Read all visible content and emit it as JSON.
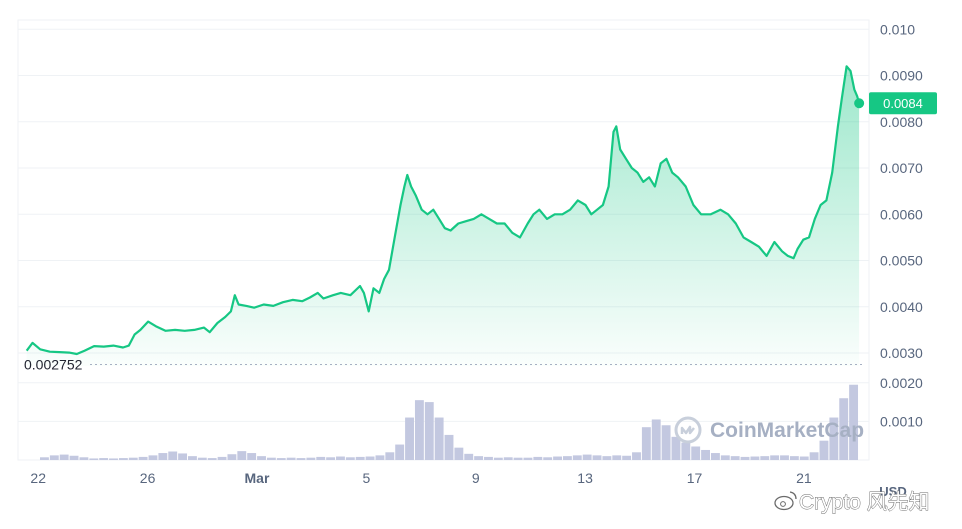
{
  "chart_data": {
    "type": "line",
    "price": {
      "y_ticks": [
        0.003,
        0.004,
        0.005,
        0.006,
        0.007,
        0.008,
        0.009,
        0.01
      ],
      "y_tick_labels": [
        "0.0030",
        "0.0040",
        "0.0050",
        "0.0060",
        "0.0070",
        "0.0080",
        "0.0090",
        "0.010"
      ],
      "ylim": [
        0.00272,
        0.0102
      ],
      "current_value": 0.0084,
      "current_label": "0.0084",
      "baseline_value": 0.002752,
      "baseline_label": "0.002752",
      "points": [
        [
          0.0,
          0.00305
        ],
        [
          0.3,
          0.00322
        ],
        [
          0.7,
          0.00308
        ],
        [
          1.2,
          0.00303
        ],
        [
          1.7,
          0.00302
        ],
        [
          2.2,
          0.00301
        ],
        [
          2.6,
          0.00298
        ],
        [
          3.0,
          0.00305
        ],
        [
          3.5,
          0.00315
        ],
        [
          4.0,
          0.00314
        ],
        [
          4.5,
          0.00316
        ],
        [
          5.0,
          0.00312
        ],
        [
          5.3,
          0.00316
        ],
        [
          5.6,
          0.0034
        ],
        [
          5.9,
          0.0035
        ],
        [
          6.3,
          0.00368
        ],
        [
          6.7,
          0.00358
        ],
        [
          7.2,
          0.00348
        ],
        [
          7.7,
          0.0035
        ],
        [
          8.2,
          0.00348
        ],
        [
          8.7,
          0.0035
        ],
        [
          9.2,
          0.00355
        ],
        [
          9.5,
          0.00345
        ],
        [
          9.9,
          0.00365
        ],
        [
          10.3,
          0.00378
        ],
        [
          10.6,
          0.0039
        ],
        [
          10.8,
          0.00425
        ],
        [
          11.0,
          0.00405
        ],
        [
          11.4,
          0.00402
        ],
        [
          11.8,
          0.00398
        ],
        [
          12.3,
          0.00405
        ],
        [
          12.8,
          0.00402
        ],
        [
          13.3,
          0.0041
        ],
        [
          13.8,
          0.00415
        ],
        [
          14.3,
          0.00412
        ],
        [
          14.7,
          0.0042
        ],
        [
          15.1,
          0.0043
        ],
        [
          15.4,
          0.00418
        ],
        [
          15.9,
          0.00425
        ],
        [
          16.3,
          0.0043
        ],
        [
          16.8,
          0.00425
        ],
        [
          17.3,
          0.00445
        ],
        [
          17.5,
          0.0043
        ],
        [
          17.75,
          0.0039
        ],
        [
          18.0,
          0.0044
        ],
        [
          18.3,
          0.0043
        ],
        [
          18.55,
          0.0046
        ],
        [
          18.8,
          0.0048
        ],
        [
          19.1,
          0.0055
        ],
        [
          19.4,
          0.0062
        ],
        [
          19.6,
          0.0066
        ],
        [
          19.75,
          0.00685
        ],
        [
          19.95,
          0.0066
        ],
        [
          20.2,
          0.0064
        ],
        [
          20.5,
          0.0061
        ],
        [
          20.8,
          0.006
        ],
        [
          21.1,
          0.0061
        ],
        [
          21.4,
          0.0059
        ],
        [
          21.7,
          0.0057
        ],
        [
          22.0,
          0.00565
        ],
        [
          22.4,
          0.0058
        ],
        [
          22.8,
          0.00585
        ],
        [
          23.2,
          0.0059
        ],
        [
          23.6,
          0.006
        ],
        [
          24.0,
          0.0059
        ],
        [
          24.4,
          0.0058
        ],
        [
          24.8,
          0.0058
        ],
        [
          25.2,
          0.0056
        ],
        [
          25.6,
          0.0055
        ],
        [
          26.0,
          0.0058
        ],
        [
          26.3,
          0.006
        ],
        [
          26.6,
          0.0061
        ],
        [
          27.0,
          0.0059
        ],
        [
          27.4,
          0.006
        ],
        [
          27.8,
          0.006
        ],
        [
          28.2,
          0.0061
        ],
        [
          28.6,
          0.0063
        ],
        [
          29.0,
          0.0062
        ],
        [
          29.3,
          0.006
        ],
        [
          29.6,
          0.0061
        ],
        [
          29.9,
          0.0062
        ],
        [
          30.2,
          0.0066
        ],
        [
          30.45,
          0.00778
        ],
        [
          30.6,
          0.0079
        ],
        [
          30.8,
          0.0074
        ],
        [
          31.1,
          0.0072
        ],
        [
          31.4,
          0.007
        ],
        [
          31.7,
          0.0069
        ],
        [
          32.0,
          0.0067
        ],
        [
          32.3,
          0.0068
        ],
        [
          32.6,
          0.0066
        ],
        [
          32.9,
          0.0071
        ],
        [
          33.2,
          0.0072
        ],
        [
          33.5,
          0.0069
        ],
        [
          33.8,
          0.0068
        ],
        [
          34.2,
          0.0066
        ],
        [
          34.6,
          0.0062
        ],
        [
          35.0,
          0.006
        ],
        [
          35.5,
          0.006
        ],
        [
          36.0,
          0.0061
        ],
        [
          36.4,
          0.006
        ],
        [
          36.8,
          0.0058
        ],
        [
          37.2,
          0.0055
        ],
        [
          37.6,
          0.0054
        ],
        [
          38.0,
          0.0053
        ],
        [
          38.4,
          0.0051
        ],
        [
          38.8,
          0.0054
        ],
        [
          39.2,
          0.0052
        ],
        [
          39.5,
          0.0051
        ],
        [
          39.8,
          0.00505
        ],
        [
          40.0,
          0.00525
        ],
        [
          40.3,
          0.00545
        ],
        [
          40.6,
          0.0055
        ],
        [
          40.9,
          0.0059
        ],
        [
          41.2,
          0.0062
        ],
        [
          41.5,
          0.0063
        ],
        [
          41.8,
          0.0069
        ],
        [
          42.1,
          0.0079
        ],
        [
          42.3,
          0.0085
        ],
        [
          42.55,
          0.0092
        ],
        [
          42.75,
          0.0091
        ],
        [
          42.95,
          0.0087
        ],
        [
          43.1,
          0.00855
        ],
        [
          43.2,
          0.0084
        ]
      ]
    },
    "volume": {
      "y_ticks": [
        0.001,
        0.002
      ],
      "y_tick_labels": [
        "0.0010",
        "0.0020"
      ],
      "ylim": [
        0,
        0.00215
      ],
      "values": [
        7e-05,
        0.00012,
        0.00014,
        0.00011,
        7e-05,
        4e-05,
        5e-05,
        4e-05,
        5e-05,
        6e-05,
        8e-05,
        0.00012,
        0.00018,
        0.00022,
        0.00017,
        0.0001,
        6e-05,
        5e-05,
        8e-05,
        0.00015,
        0.00023,
        0.00018,
        0.0001,
        6e-05,
        5e-05,
        6e-05,
        5e-05,
        6e-05,
        8e-05,
        7e-05,
        9e-05,
        7e-05,
        8e-05,
        9e-05,
        0.00012,
        0.0002,
        0.0004,
        0.0011,
        0.00155,
        0.0015,
        0.0011,
        0.00065,
        0.00032,
        0.00016,
        0.0001,
        8e-05,
        6e-05,
        7e-05,
        6e-05,
        6e-05,
        8e-05,
        7e-05,
        9e-05,
        0.0001,
        0.00012,
        0.00014,
        0.00012,
        0.0001,
        0.00012,
        0.00011,
        0.0002,
        0.00085,
        0.00105,
        0.0009,
        0.0006,
        0.00045,
        0.00035,
        0.00026,
        0.00018,
        0.00012,
        0.0001,
        8e-05,
        9e-05,
        0.0001,
        0.00012,
        0.00012,
        0.0001,
        9e-05,
        0.0002,
        0.0005,
        0.0011,
        0.0016,
        0.00195
      ]
    },
    "x_ticks": [
      {
        "label": "22",
        "x": 0.0
      },
      {
        "label": "26",
        "x": 4.0
      },
      {
        "label": "Mar",
        "x": 8.0,
        "bold": true
      },
      {
        "label": "5",
        "x": 12.0
      },
      {
        "label": "9",
        "x": 16.0
      },
      {
        "label": "13",
        "x": 20.0
      },
      {
        "label": "17",
        "x": 24.0
      },
      {
        "label": "21",
        "x": 28.0
      }
    ],
    "x_plot_domain": [
      -0.45,
      43.4
    ],
    "x_tick_domain": [
      -0.3,
      28.7
    ],
    "currency_label": "USD",
    "grid": true,
    "colors": {
      "line": "#16c784",
      "area_top": "#16c784",
      "volume": "#c3c8e0",
      "grid": "#eff2f5",
      "baseline": "#a6b0c3",
      "price_tag": "#16c784"
    }
  },
  "watermark": {
    "brand": "CoinMarketCap",
    "logo_icon": "coinmarketcap-logo-icon"
  },
  "attribution": {
    "text": "Crypto 风先知",
    "icon": "weibo-icon"
  }
}
